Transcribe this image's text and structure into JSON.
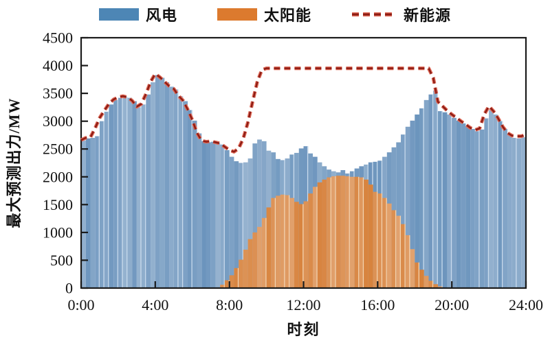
{
  "legend": {
    "items": [
      {
        "label": "风电",
        "marker": "bar-swatch"
      },
      {
        "label": "太阳能",
        "marker": "bar-swatch"
      },
      {
        "label": "新能源",
        "marker": "dashed-line"
      }
    ]
  },
  "chart_data": {
    "type": "bar+line",
    "title": "",
    "xlabel": "时刻",
    "ylabel": "最大预测出力/MW",
    "xlim_hours": [
      0,
      24
    ],
    "ylim": [
      0,
      4500
    ],
    "x_step_hours": 0.25,
    "x_tick_hours": [
      0,
      4,
      8,
      12,
      16,
      20,
      24
    ],
    "x_tick_labels": [
      "0:00",
      "4:00",
      "8:00",
      "12:00",
      "16:00",
      "20:00",
      "24:00"
    ],
    "y_ticks": [
      0,
      500,
      1000,
      1500,
      2000,
      2500,
      3000,
      3500,
      4000,
      4500
    ],
    "grid": false,
    "legend_position": "top",
    "series": [
      {
        "name": "风电",
        "type": "bar",
        "color": "#4D86B5",
        "values": [
          2650,
          2690,
          2700,
          2730,
          3000,
          3170,
          3300,
          3380,
          3420,
          3440,
          3420,
          3360,
          3250,
          3300,
          3480,
          3700,
          3830,
          3780,
          3700,
          3620,
          3570,
          3450,
          3360,
          3200,
          3010,
          2780,
          2640,
          2620,
          2630,
          2610,
          2580,
          2480,
          2360,
          2280,
          2250,
          2260,
          2330,
          2600,
          2670,
          2640,
          2470,
          2440,
          2320,
          2300,
          2330,
          2400,
          2430,
          2510,
          2550,
          2420,
          2360,
          2260,
          2190,
          2130,
          2100,
          2080,
          2120,
          2060,
          2100,
          2150,
          2190,
          2220,
          2260,
          2270,
          2290,
          2360,
          2440,
          2530,
          2620,
          2760,
          2900,
          3010,
          3120,
          3230,
          3380,
          3480,
          3550,
          3180,
          3160,
          3120,
          3060,
          3010,
          2960,
          2910,
          2860,
          2820,
          2850,
          3050,
          3200,
          3120,
          3000,
          2860,
          2760,
          2700,
          2690,
          2710
        ]
      },
      {
        "name": "太阳能",
        "type": "bar",
        "color": "#DC7A2E",
        "values": [
          0,
          0,
          0,
          0,
          0,
          0,
          0,
          0,
          0,
          0,
          0,
          0,
          0,
          0,
          0,
          0,
          0,
          0,
          0,
          0,
          0,
          0,
          0,
          0,
          0,
          0,
          0,
          0,
          0,
          0,
          60,
          140,
          230,
          360,
          510,
          690,
          880,
          1000,
          1100,
          1260,
          1450,
          1620,
          1660,
          1680,
          1670,
          1620,
          1550,
          1510,
          1560,
          1700,
          1820,
          1900,
          1950,
          1990,
          2010,
          2020,
          2020,
          2010,
          2000,
          2000,
          1990,
          1950,
          1860,
          1730,
          1700,
          1620,
          1520,
          1400,
          1300,
          1150,
          950,
          700,
          460,
          330,
          220,
          130,
          70,
          30,
          0,
          0,
          0,
          0,
          0,
          0,
          0,
          0,
          0,
          0,
          0,
          0,
          0,
          0,
          0,
          0,
          0,
          0
        ]
      },
      {
        "name": "新能源",
        "type": "line",
        "line_style": "dashed",
        "color": "#8E1D15",
        "halo_color": "#DF6A58",
        "values": [
          2660,
          2700,
          2710,
          2870,
          3060,
          3190,
          3310,
          3390,
          3430,
          3450,
          3430,
          3370,
          3260,
          3310,
          3490,
          3710,
          3850,
          3790,
          3710,
          3630,
          3580,
          3460,
          3370,
          3210,
          3020,
          2790,
          2650,
          2630,
          2640,
          2620,
          2600,
          2540,
          2480,
          2450,
          2510,
          2690,
          2980,
          3350,
          3700,
          3920,
          3950,
          3950,
          3950,
          3950,
          3950,
          3950,
          3950,
          3950,
          3950,
          3950,
          3950,
          3950,
          3950,
          3950,
          3950,
          3950,
          3950,
          3950,
          3950,
          3950,
          3950,
          3950,
          3950,
          3950,
          3950,
          3950,
          3950,
          3950,
          3950,
          3950,
          3950,
          3950,
          3950,
          3950,
          3950,
          3950,
          3780,
          3350,
          3270,
          3190,
          3120,
          3060,
          3000,
          2940,
          2880,
          2840,
          2870,
          3120,
          3270,
          3180,
          3050,
          2900,
          2790,
          2740,
          2730,
          2730,
          2760
        ]
      }
    ]
  }
}
